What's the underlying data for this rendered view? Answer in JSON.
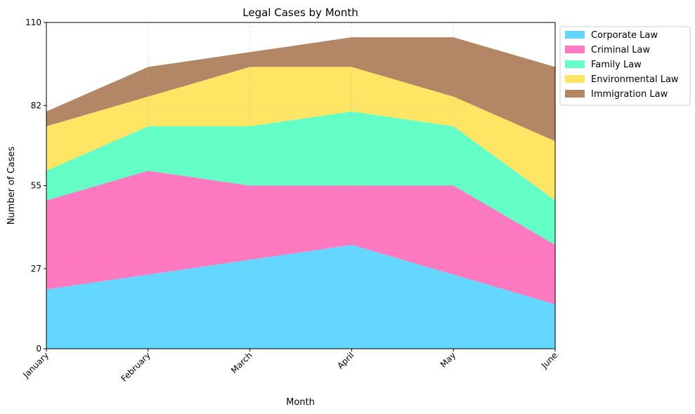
{
  "chart_data": {
    "type": "area",
    "stacked": true,
    "title": "Legal Cases by Month",
    "xlabel": "Month",
    "ylabel": "Number of Cases",
    "categories": [
      "January",
      "February",
      "March",
      "April",
      "May",
      "June"
    ],
    "yticks": [
      "0",
      "27",
      "55",
      "82",
      "110"
    ],
    "ylim": [
      0,
      110
    ],
    "grid": true,
    "legend_position": "upper-right-outside",
    "series": [
      {
        "name": "Corporate Law",
        "color": "#4dd2ff",
        "values": [
          20,
          25,
          30,
          35,
          25,
          15
        ]
      },
      {
        "name": "Criminal Law",
        "color": "#ff66b8",
        "values": [
          30,
          35,
          25,
          20,
          30,
          20
        ]
      },
      {
        "name": "Family Law",
        "color": "#4dffbe",
        "values": [
          10,
          15,
          20,
          25,
          20,
          15
        ]
      },
      {
        "name": "Environmental Law",
        "color": "#ffe14d",
        "values": [
          15,
          10,
          20,
          15,
          10,
          20
        ]
      },
      {
        "name": "Immigration Law",
        "color": "#a87650",
        "values": [
          5,
          10,
          5,
          10,
          20,
          25
        ]
      }
    ]
  }
}
